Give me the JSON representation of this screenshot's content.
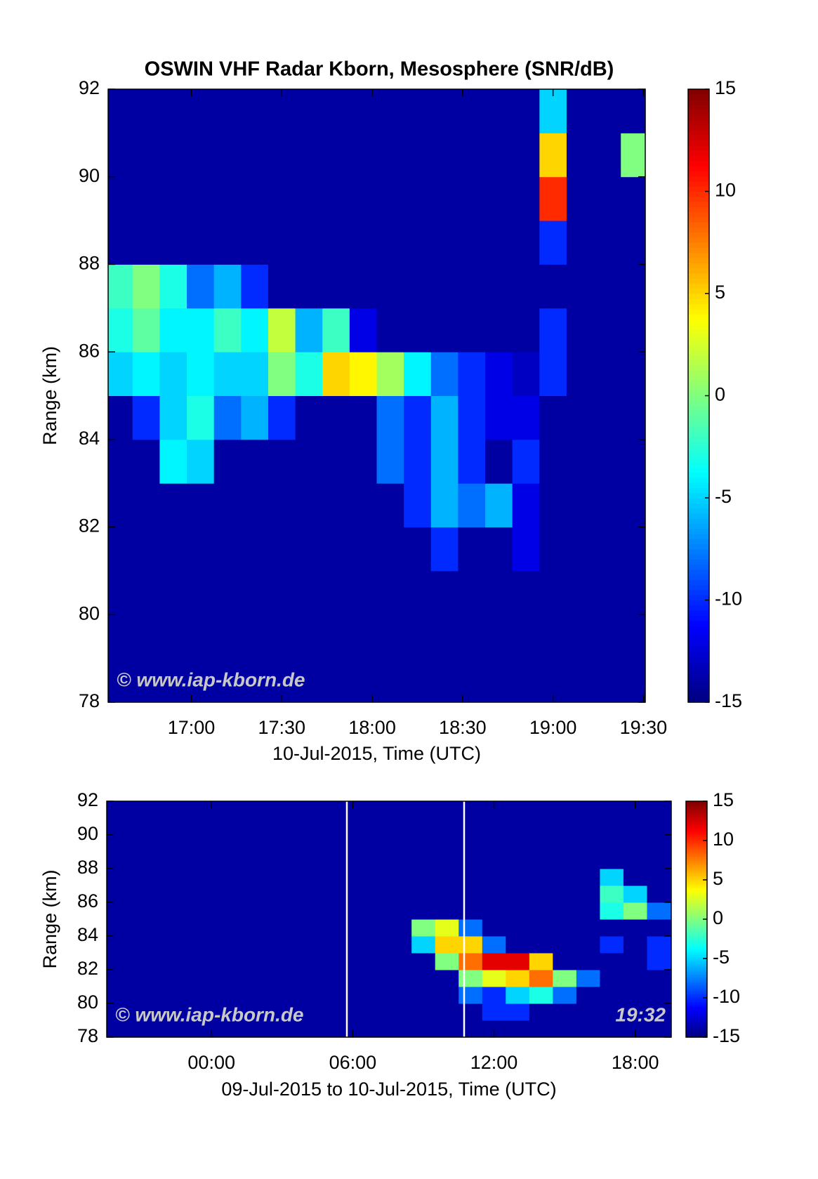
{
  "chart_data": [
    {
      "type": "heatmap",
      "title": "OSWIN VHF Radar Kborn, Mesosphere (SNR/dB)",
      "xlabel": "10-Jul-2015, Time (UTC)",
      "ylabel": "Range (km)",
      "annotations": [
        "© www.iap-kborn.de"
      ],
      "x": [
        16.6,
        16.75,
        16.9,
        17.05,
        17.2,
        17.35,
        17.5,
        17.65,
        17.8,
        17.95,
        18.1,
        18.25,
        18.4,
        18.55,
        18.7,
        18.85,
        19.0,
        19.15,
        19.3,
        19.45
      ],
      "y": [
        78.5,
        79.5,
        80.5,
        81.5,
        82.5,
        83.5,
        84.5,
        85.5,
        86.5,
        87.5,
        88.5,
        89.5,
        90.5,
        91.5
      ],
      "z": [
        [
          -14,
          -14,
          -14,
          -14,
          -14,
          -14,
          -14,
          -14,
          -14,
          -14,
          -14,
          -14,
          -14,
          -14,
          -14,
          -14,
          -14,
          -14,
          -14,
          -14
        ],
        [
          -14,
          -14,
          -14,
          -14,
          -14,
          -14,
          -14,
          -14,
          -14,
          -14,
          -14,
          -14,
          -14,
          -14,
          -14,
          -14,
          -14,
          -14,
          -14,
          -14
        ],
        [
          -14,
          -14,
          -14,
          -14,
          -14,
          -14,
          -14,
          -14,
          -14,
          -14,
          -14,
          -14,
          -14,
          -14,
          -14,
          -14,
          -14,
          -14,
          -14,
          -14
        ],
        [
          -14,
          -14,
          -14,
          -14,
          -14,
          -14,
          -14,
          -14,
          -14,
          -14,
          -14,
          -14,
          -10,
          -14,
          -14,
          -12,
          -14,
          -14,
          -14,
          -14
        ],
        [
          -14,
          -14,
          -14,
          -14,
          -14,
          -14,
          -14,
          -14,
          -14,
          -14,
          -14,
          -10,
          -6,
          -8,
          -6,
          -12,
          -14,
          -14,
          -14,
          -14
        ],
        [
          -14,
          -14,
          -4,
          -5,
          -14,
          -14,
          -14,
          -14,
          -14,
          -14,
          -8,
          -10,
          -6,
          -10,
          -14,
          -10,
          -14,
          -14,
          -14,
          -14
        ],
        [
          -14,
          -10,
          -5,
          -3,
          -8,
          -6,
          -10,
          -14,
          -14,
          -14,
          -8,
          -10,
          -6,
          -10,
          -12,
          -12,
          -14,
          -14,
          -14,
          -14
        ],
        [
          -5,
          -4,
          -5,
          -4,
          -5,
          -5,
          0,
          -3,
          5,
          4,
          1,
          -4,
          -8,
          -10,
          -12,
          -13,
          -10,
          -14,
          -14,
          -14
        ],
        [
          -3,
          -1,
          -4,
          -4,
          -2,
          -4,
          2,
          -6,
          -2,
          -12,
          -14,
          -14,
          -14,
          -14,
          -14,
          -14,
          -10,
          -14,
          -14,
          -14
        ],
        [
          -2,
          0,
          -3,
          -8,
          -6,
          -10,
          -14,
          -14,
          -14,
          -14,
          -14,
          -14,
          -14,
          -14,
          -14,
          -14,
          -14,
          -14,
          -14,
          -14
        ],
        [
          -14,
          -14,
          -14,
          -14,
          -14,
          -14,
          -14,
          -14,
          -14,
          -14,
          -14,
          -14,
          -14,
          -14,
          -14,
          -14,
          -10,
          -14,
          -14,
          -14
        ],
        [
          -14,
          -14,
          -14,
          -14,
          -14,
          -14,
          -14,
          -14,
          -14,
          -14,
          -14,
          -14,
          -14,
          -14,
          -14,
          -14,
          10,
          -14,
          -14,
          -14
        ],
        [
          -14,
          -14,
          -14,
          -14,
          -14,
          -14,
          -14,
          -14,
          -14,
          -14,
          -14,
          -14,
          -14,
          -14,
          -14,
          -14,
          5,
          -14,
          -14,
          0
        ],
        [
          -14,
          -14,
          -14,
          -14,
          -14,
          -14,
          -14,
          -14,
          -14,
          -14,
          -14,
          -14,
          -14,
          -14,
          -14,
          -14,
          -5,
          -14,
          -14,
          -14
        ]
      ],
      "xlim": [
        16.54,
        19.51
      ],
      "ylim": [
        78,
        92
      ],
      "xticks": [
        {
          "value": 17,
          "label": "17:00"
        },
        {
          "value": 17.5,
          "label": "17:30"
        },
        {
          "value": 18,
          "label": "18:00"
        },
        {
          "value": 18.5,
          "label": "18:30"
        },
        {
          "value": 19,
          "label": "19:00"
        },
        {
          "value": 19.5,
          "label": "19:30"
        }
      ],
      "yticks": [
        78,
        80,
        82,
        84,
        86,
        88,
        90,
        92
      ],
      "clim": [
        -15,
        15
      ],
      "cticks": [
        -15,
        -10,
        -5,
        0,
        5,
        10,
        15
      ]
    },
    {
      "type": "heatmap",
      "xlabel": "09-Jul-2015 to 10-Jul-2015, Time (UTC)",
      "ylabel": "Range (km)",
      "annotations": [
        "© www.iap-kborn.de",
        "19:32"
      ],
      "x": [
        -4,
        -3,
        -2,
        -1,
        0,
        1,
        2,
        3,
        4,
        5,
        6,
        7,
        8,
        9,
        10,
        11,
        12,
        13,
        14,
        15,
        16,
        17,
        18,
        19
      ],
      "y": [
        78.5,
        79.5,
        80.5,
        81.5,
        82.5,
        83.5,
        84.5,
        85.5,
        86.5,
        87.5,
        88.5,
        89.5,
        90.5,
        91.5
      ],
      "z": [
        [
          -14,
          -14,
          -14,
          -14,
          -14,
          -14,
          -14,
          -14,
          -14,
          -14,
          -14,
          -14,
          -14,
          -14,
          -14,
          -14,
          -14,
          -14,
          -14,
          -14,
          -14,
          -14,
          -14,
          -14
        ],
        [
          -14,
          -14,
          -14,
          -14,
          -14,
          -14,
          -14,
          -14,
          -14,
          -14,
          -14,
          -14,
          -14,
          -14,
          -14,
          -14,
          -10,
          -10,
          -14,
          -14,
          -14,
          -14,
          -14,
          -14
        ],
        [
          -14,
          -14,
          -14,
          -14,
          -14,
          -14,
          -14,
          -14,
          -14,
          -14,
          -14,
          -14,
          -14,
          -14,
          -14,
          -8,
          -10,
          -5,
          -3,
          -8,
          -14,
          -14,
          -14,
          -14
        ],
        [
          -14,
          -14,
          -14,
          -14,
          -14,
          -14,
          -14,
          -14,
          -14,
          -14,
          -14,
          -14,
          -14,
          -14,
          -14,
          0,
          3,
          5,
          8,
          0,
          -8,
          -14,
          -14,
          -14
        ],
        [
          -14,
          -14,
          -14,
          -14,
          -14,
          -14,
          -14,
          -14,
          -14,
          -14,
          -14,
          -14,
          -14,
          -14,
          0,
          8,
          12,
          12,
          5,
          -14,
          -14,
          -14,
          -14,
          -10
        ],
        [
          -14,
          -14,
          -14,
          -14,
          -14,
          -14,
          -14,
          -14,
          -14,
          -14,
          -14,
          -14,
          -14,
          -5,
          5,
          5,
          -8,
          -14,
          -14,
          -14,
          -14,
          -10,
          -14,
          -10
        ],
        [
          -14,
          -14,
          -14,
          -14,
          -14,
          -14,
          -14,
          -14,
          -14,
          -14,
          -14,
          -14,
          -14,
          0,
          3,
          -8,
          -14,
          -14,
          -14,
          -14,
          -14,
          -14,
          -14,
          -14
        ],
        [
          -14,
          -14,
          -14,
          -14,
          -14,
          -14,
          -14,
          -14,
          -14,
          -14,
          -14,
          -14,
          -14,
          -14,
          -14,
          -14,
          -14,
          -14,
          -14,
          -14,
          -14,
          -3,
          0,
          -8
        ],
        [
          -14,
          -14,
          -14,
          -14,
          -14,
          -14,
          -14,
          -14,
          -14,
          -14,
          -14,
          -14,
          -14,
          -14,
          -14,
          -14,
          -14,
          -14,
          -14,
          -14,
          -14,
          -2,
          -5,
          -14
        ],
        [
          -14,
          -14,
          -14,
          -14,
          -14,
          -14,
          -14,
          -14,
          -14,
          -14,
          -14,
          -14,
          -14,
          -14,
          -14,
          -14,
          -14,
          -14,
          -14,
          -14,
          -14,
          -5,
          -14,
          -14
        ],
        [
          -14,
          -14,
          -14,
          -14,
          -14,
          -14,
          -14,
          -14,
          -14,
          -14,
          -14,
          -14,
          -14,
          -14,
          -14,
          -14,
          -14,
          -14,
          -14,
          -14,
          -14,
          -14,
          -14,
          -14
        ],
        [
          -14,
          -14,
          -14,
          -14,
          -14,
          -14,
          -14,
          -14,
          -14,
          -14,
          -14,
          -14,
          -14,
          -14,
          -14,
          -14,
          -14,
          -14,
          -14,
          -14,
          -14,
          -14,
          -14,
          -14
        ],
        [
          -14,
          -14,
          -14,
          -14,
          -14,
          -14,
          -14,
          -14,
          -14,
          -14,
          -14,
          -14,
          -14,
          -14,
          -14,
          -14,
          -14,
          -14,
          -14,
          -14,
          -14,
          -14,
          -14,
          -14
        ],
        [
          -14,
          -14,
          -14,
          -14,
          -14,
          -14,
          -14,
          -14,
          -14,
          -14,
          -14,
          -14,
          -14,
          -14,
          -14,
          -14,
          -14,
          -14,
          -14,
          -14,
          -14,
          -14,
          -14,
          -14
        ]
      ],
      "xlim": [
        -4.45,
        19.53
      ],
      "ylim": [
        78,
        92
      ],
      "xticks": [
        {
          "value": 0,
          "label": "00:00"
        },
        {
          "value": 6,
          "label": "06:00"
        },
        {
          "value": 12,
          "label": "12:00"
        },
        {
          "value": 18,
          "label": "18:00"
        }
      ],
      "yticks": [
        78,
        80,
        82,
        84,
        86,
        88,
        90,
        92
      ],
      "clim": [
        -15,
        15
      ],
      "cticks": [
        -15,
        -10,
        -5,
        0,
        5,
        10,
        15
      ]
    }
  ]
}
